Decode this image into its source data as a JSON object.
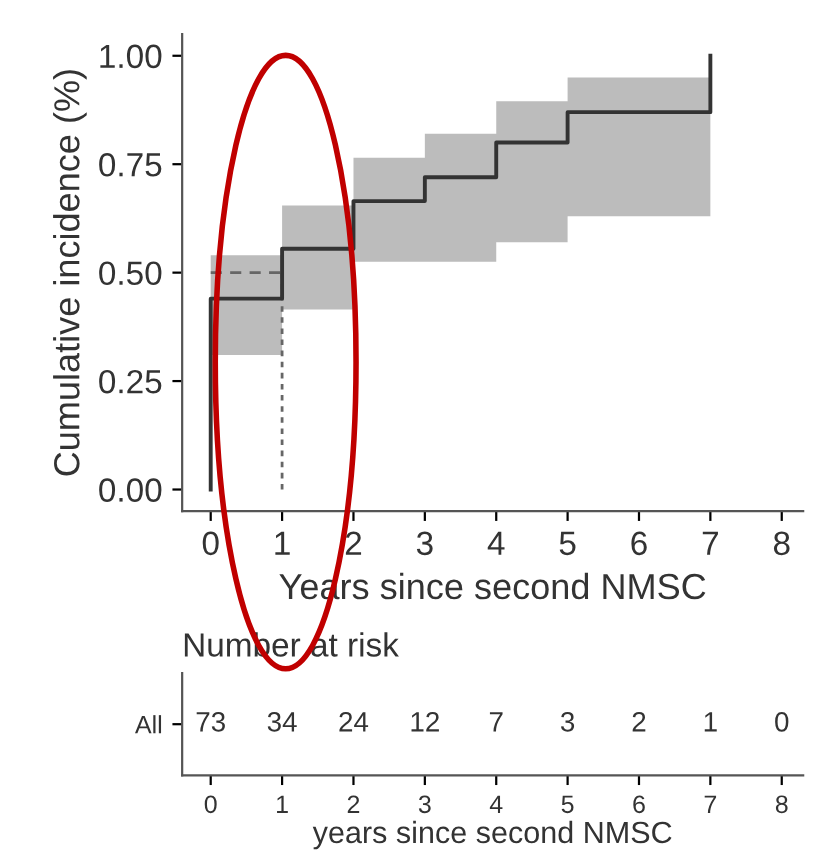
{
  "chart_data": [
    {
      "type": "step",
      "ylabel": "Cumulative incidence (%)",
      "xlabel": "Years since second NMSC",
      "series": [
        {
          "color": "#333333",
          "x": [
            0,
            0,
            1,
            2,
            3,
            4,
            5,
            7
          ],
          "values": [
            0,
            0.44,
            0.555,
            0.665,
            0.72,
            0.8,
            0.87,
            1.0
          ],
          "lower": [
            null,
            0.31,
            0.415,
            0.525,
            0.525,
            0.57,
            0.63,
            0.63
          ],
          "upper": [
            null,
            0.54,
            0.655,
            0.765,
            0.82,
            0.895,
            0.95,
            0.95
          ]
        }
      ],
      "xlim": [
        -0.4,
        8.3
      ],
      "xticks": [
        0,
        1,
        2,
        3,
        4,
        5,
        6,
        7,
        8
      ],
      "ylim": [
        -0.05,
        1.05
      ],
      "yticks": [
        {
          "value": 0,
          "label": "0.00"
        },
        {
          "value": 0.25,
          "label": "0.25"
        },
        {
          "value": 0.5,
          "label": "0.50"
        },
        {
          "value": 0.75,
          "label": "0.75"
        },
        {
          "value": 1,
          "label": "1.00"
        }
      ],
      "ref_lines": [
        {
          "axis": "y",
          "value": 0.5,
          "line_style": "dashed",
          "color": "#666666"
        },
        {
          "axis": "x",
          "value": 1,
          "line_style": "dotted",
          "color": "#666666"
        }
      ],
      "grid": false,
      "legend": false
    },
    {
      "type": "heatmap",
      "title": "Number at risk",
      "xlabel": "years since second NMSC",
      "categories": [
        "0",
        "1",
        "2",
        "3",
        "4",
        "5",
        "6",
        "7",
        "8"
      ],
      "y_categories": [
        "All"
      ],
      "cells": [
        [
          73,
          34,
          24,
          12,
          7,
          3,
          2,
          1,
          0
        ]
      ],
      "data_labels": true
    }
  ]
}
